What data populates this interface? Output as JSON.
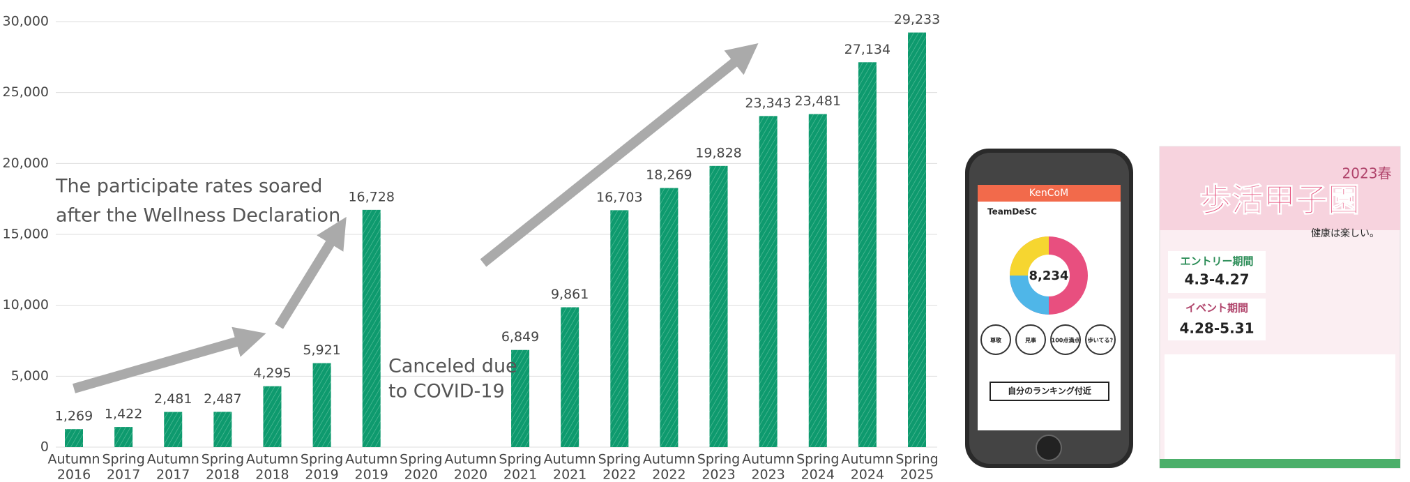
{
  "chart_data": {
    "type": "bar",
    "categories": [
      [
        "Autumn",
        "2016"
      ],
      [
        "Spring",
        "2017"
      ],
      [
        "Autumn",
        "2017"
      ],
      [
        "Spring",
        "2018"
      ],
      [
        "Autumn",
        "2018"
      ],
      [
        "Spring",
        "2019"
      ],
      [
        "Autumn",
        "2019"
      ],
      [
        "Spring",
        "2020"
      ],
      [
        "Autumn",
        "2020"
      ],
      [
        "Spring",
        "2021"
      ],
      [
        "Autumn",
        "2021"
      ],
      [
        "Spring",
        "2022"
      ],
      [
        "Autumn",
        "2022"
      ],
      [
        "Spring",
        "2023"
      ],
      [
        "Autumn",
        "2023"
      ],
      [
        "Spring",
        "2024"
      ],
      [
        "Autumn",
        "2024"
      ],
      [
        "Spring",
        "2025"
      ]
    ],
    "values": [
      1269,
      1422,
      2481,
      2487,
      4295,
      5921,
      16728,
      null,
      null,
      6849,
      9861,
      16703,
      18269,
      19828,
      23343,
      23481,
      27134,
      29233
    ],
    "value_labels": [
      "1,269",
      "1,422",
      "2,481",
      "2,487",
      "4,295",
      "5,921",
      "16,728",
      null,
      null,
      "6,849",
      "9,861",
      "16,703",
      "18,269",
      "19,828",
      "23,343",
      "23,481",
      "27,134",
      "29,233"
    ],
    "color": "#0e9a6e",
    "ylim": [
      0,
      30000
    ],
    "yticks": [
      0,
      {
        "value": 5000,
        "label": "5,000"
      },
      {
        "value": 10000,
        "label": "10,000"
      },
      {
        "value": 15000,
        "label": "15,000"
      },
      {
        "value": 20000,
        "label": "20,000"
      },
      {
        "value": 25000,
        "label": "25,000"
      },
      {
        "value": 30000,
        "label": "30,000"
      }
    ],
    "grid": true,
    "annotations": [
      [
        "The participate rates soared",
        "after the Wellness Declaration"
      ],
      [
        "Canceled due",
        "to COVID-19"
      ]
    ]
  },
  "images": {
    "phone": {
      "app": "KenCoM",
      "team": "TeamDeSC",
      "steps": "8,234",
      "ranking": "自分のランキング付近",
      "badges": [
        "尊敬",
        "見事",
        "100点満点",
        "歩いてる?"
      ]
    },
    "poster": {
      "season": "2023春",
      "title": "歩活甲子園",
      "entry": "エントリー期間",
      "entry_dates": "4.3-4.27",
      "event": "イベント期間",
      "event_dates": "4.28-5.31",
      "catch": "健康は楽しい。"
    }
  }
}
